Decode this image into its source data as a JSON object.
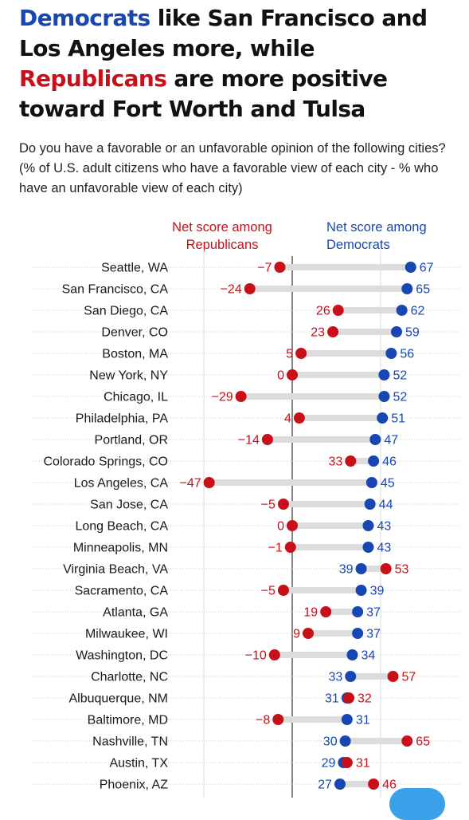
{
  "headline": {
    "part1": "Democrats",
    "part2": " like San Francisco and Los Angeles more, while ",
    "part3": "Republicans",
    "part4": " are more positive toward Fort Worth and Tulsa"
  },
  "subtitle": "Do you have a favorable or an unfavorable opinion of the following cities? (% of U.S. adult citizens who have a favorable view of each city - % who have an unfavorable view of each city)",
  "colors": {
    "democrat": "#1847b3",
    "republican": "#c8101a",
    "connector": "#dcdcdc"
  },
  "chart_data": {
    "type": "dot",
    "headers": {
      "republican": [
        "Net score among",
        "Republicans"
      ],
      "democrat": [
        "Net score among",
        "Democrats"
      ]
    },
    "categories": [
      "Seattle, WA",
      "San Francisco, CA",
      "San Diego, CA",
      "Denver, CO",
      "Boston, MA",
      "New York, NY",
      "Chicago, IL",
      "Philadelphia, PA",
      "Portland, OR",
      "Colorado Springs, CO",
      "Los Angeles, CA",
      "San Jose, CA",
      "Long Beach, CA",
      "Minneapolis, MN",
      "Virginia Beach, VA",
      "Sacramento, CA",
      "Atlanta, GA",
      "Milwaukee, WI",
      "Washington, DC",
      "Charlotte, NC",
      "Albuquerque, NM",
      "Baltimore, MD",
      "Nashville, TN",
      "Austin, TX",
      "Phoenix, AZ"
    ],
    "series": [
      {
        "name": "Republicans",
        "color": "#c8101a",
        "values": [
          -7,
          -24,
          26,
          23,
          5,
          0,
          -29,
          4,
          -14,
          33,
          -47,
          -5,
          0,
          -1,
          53,
          -5,
          19,
          9,
          -10,
          57,
          32,
          -8,
          65,
          31,
          46
        ]
      },
      {
        "name": "Democrats",
        "color": "#1847b3",
        "values": [
          67,
          65,
          62,
          59,
          56,
          52,
          52,
          51,
          47,
          46,
          45,
          44,
          43,
          43,
          39,
          39,
          37,
          37,
          34,
          33,
          31,
          31,
          30,
          29,
          27
        ]
      }
    ],
    "value_labels": {
      "republican": [
        "−7",
        "−24",
        "26",
        "23",
        "5",
        "0",
        "−29",
        "4",
        "−14",
        "33",
        "−47",
        "−5",
        "0",
        "−1",
        "53",
        "−5",
        "19",
        "9",
        "−10",
        "57",
        "32",
        "−8",
        "65",
        "31",
        "46"
      ],
      "democrat": [
        "67",
        "65",
        "62",
        "59",
        "56",
        "52",
        "52",
        "51",
        "47",
        "46",
        "45",
        "44",
        "43",
        "43",
        "39",
        "39",
        "37",
        "37",
        "34",
        "33",
        "31",
        "31",
        "30",
        "29",
        "27"
      ]
    },
    "xlim": [
      -50,
      75
    ],
    "gridlines": [
      -50,
      0,
      50
    ]
  }
}
